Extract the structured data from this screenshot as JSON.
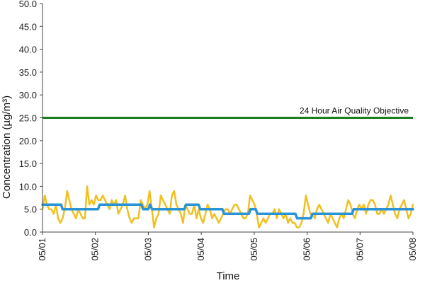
{
  "chart_data": {
    "type": "line",
    "xlabel": "Time",
    "ylabel": "Concentration (µg/m³)",
    "ylim": [
      0,
      50
    ],
    "yticks": [
      "0.0",
      "5.0",
      "10.0",
      "15.0",
      "20.0",
      "25.0",
      "30.0",
      "35.0",
      "40.0",
      "45.0",
      "50.0"
    ],
    "xticks": [
      "05/01",
      "05/02",
      "05/03",
      "05/04",
      "05/05",
      "05/06",
      "05/07",
      "05/08"
    ],
    "grid": false,
    "objective": {
      "label": "24 Hour Air Quality Objective",
      "value": 25,
      "color": "#1e7d1e"
    },
    "series": [
      {
        "color": "#f0c020",
        "values": [
          5,
          8,
          6,
          5,
          5,
          4,
          6,
          3,
          2,
          3,
          5,
          9,
          7,
          5,
          4,
          3,
          5,
          4,
          3,
          3,
          10,
          6,
          7,
          6,
          8,
          7,
          7,
          8,
          7,
          6,
          5,
          7,
          6,
          7,
          4,
          5,
          6,
          8,
          5,
          3,
          2,
          3,
          3,
          3,
          7,
          6,
          5,
          6,
          9,
          5,
          1,
          3,
          4,
          8,
          7,
          6,
          5,
          4,
          8,
          9,
          6,
          5,
          4,
          2,
          6,
          5,
          4,
          4,
          6,
          3,
          5,
          3,
          2,
          4,
          6,
          5,
          3,
          4,
          3,
          2,
          3,
          4,
          5,
          5,
          4,
          5,
          6,
          6,
          5,
          4,
          3,
          3,
          4,
          8,
          7,
          6,
          4,
          1,
          2,
          3,
          2,
          3,
          4,
          4,
          5,
          3,
          5,
          4,
          3,
          4,
          2,
          3,
          2,
          2,
          1,
          1,
          2,
          4,
          8,
          6,
          4,
          4,
          3,
          5,
          6,
          5,
          4,
          3,
          2,
          4,
          3,
          2,
          1,
          3,
          4,
          3,
          5,
          7,
          6,
          4,
          3,
          5,
          6,
          5,
          6,
          4,
          6,
          7,
          7,
          6,
          4,
          4,
          5,
          4,
          5,
          6,
          8,
          6,
          4,
          3,
          5,
          6,
          7,
          5,
          3,
          4,
          6
        ]
      },
      {
        "color": "#2a93d5",
        "values": [
          {
            "x": 0.0,
            "y": 6
          },
          {
            "x": 0.35,
            "y": 6
          },
          {
            "x": 0.38,
            "y": 5
          },
          {
            "x": 1.05,
            "y": 5
          },
          {
            "x": 1.08,
            "y": 6
          },
          {
            "x": 1.87,
            "y": 6
          },
          {
            "x": 1.9,
            "y": 5
          },
          {
            "x": 2.0,
            "y": 5
          },
          {
            "x": 2.03,
            "y": 6
          },
          {
            "x": 2.07,
            "y": 5
          },
          {
            "x": 2.68,
            "y": 5
          },
          {
            "x": 2.71,
            "y": 6
          },
          {
            "x": 2.95,
            "y": 6
          },
          {
            "x": 2.98,
            "y": 5
          },
          {
            "x": 3.4,
            "y": 5
          },
          {
            "x": 3.43,
            "y": 4
          },
          {
            "x": 3.9,
            "y": 4
          },
          {
            "x": 3.93,
            "y": 5
          },
          {
            "x": 4.03,
            "y": 5
          },
          {
            "x": 4.06,
            "y": 4
          },
          {
            "x": 4.78,
            "y": 4
          },
          {
            "x": 4.81,
            "y": 3
          },
          {
            "x": 5.07,
            "y": 3
          },
          {
            "x": 5.1,
            "y": 4
          },
          {
            "x": 5.85,
            "y": 4
          },
          {
            "x": 5.88,
            "y": 5
          },
          {
            "x": 7.0,
            "y": 5
          }
        ]
      }
    ]
  }
}
